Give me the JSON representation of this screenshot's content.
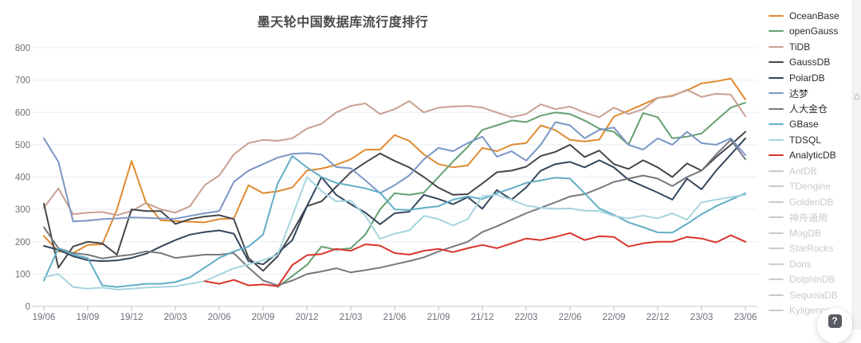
{
  "page": {
    "help_button_glyph": "?",
    "home_icon_glyph": "⌂"
  },
  "chart": {
    "title": "墨天轮中国数据库流行度排行",
    "y_axis": {
      "min": 0,
      "max": 800,
      "tick_labels": [
        "0",
        "100",
        "200",
        "300",
        "400",
        "500",
        "600",
        "700",
        "800"
      ]
    },
    "x_axis": {
      "tick_labels": [
        "19/06",
        "19/09",
        "19/12",
        "20/03",
        "20/06",
        "20/09",
        "20/12",
        "21/03",
        "21/06",
        "21/09",
        "21/12",
        "22/03",
        "22/06",
        "22/09",
        "22/12",
        "23/03",
        "23/06"
      ]
    }
  },
  "chart_data": {
    "type": "line",
    "title": "墨天轮中国数据库流行度排行",
    "x_interval": "monthly",
    "x_first": "2019/06",
    "x_last": "2023/06",
    "x_tick_labels": [
      "19/06",
      "19/09",
      "19/12",
      "20/03",
      "20/06",
      "20/09",
      "20/12",
      "21/03",
      "21/06",
      "21/09",
      "21/12",
      "22/03",
      "22/06",
      "22/09",
      "22/12",
      "23/03",
      "23/06"
    ],
    "ylim": [
      0,
      800
    ],
    "grid": true,
    "legend_position": "right",
    "disabled_color": "#c9cace",
    "series": [
      {
        "id": "oceanbase",
        "name": "OceanBase",
        "color": "#df8a30",
        "values": [
          218,
          170,
          165,
          190,
          192,
          300,
          450,
          320,
          266,
          264,
          262,
          260,
          270,
          272,
          375,
          350,
          356,
          368,
          420,
          426,
          438,
          455,
          485,
          485,
          530,
          512,
          470,
          440,
          430,
          436,
          490,
          480,
          500,
          505,
          560,
          545,
          515,
          510,
          516,
          587,
          605,
          625,
          645,
          652,
          668,
          690,
          696,
          705,
          640
        ]
      },
      {
        "id": "opengauss",
        "name": "openGauss",
        "color": "#63a06f",
        "values": [
          null,
          null,
          null,
          null,
          null,
          null,
          null,
          null,
          null,
          null,
          null,
          null,
          null,
          null,
          null,
          null,
          60,
          94,
          128,
          185,
          175,
          180,
          222,
          300,
          350,
          345,
          352,
          400,
          448,
          493,
          546,
          560,
          575,
          570,
          590,
          600,
          595,
          575,
          550,
          540,
          500,
          598,
          585,
          520,
          525,
          535,
          575,
          615,
          630
        ]
      },
      {
        "id": "tidb",
        "name": "TiDB",
        "color": "#c8a092",
        "values": [
          305,
          365,
          285,
          290,
          292,
          282,
          295,
          320,
          300,
          290,
          310,
          375,
          405,
          470,
          505,
          515,
          512,
          520,
          550,
          565,
          600,
          620,
          628,
          595,
          610,
          635,
          600,
          615,
          618,
          620,
          615,
          600,
          585,
          595,
          625,
          610,
          618,
          600,
          585,
          615,
          595,
          610,
          645,
          650,
          670,
          648,
          658,
          655,
          588
        ]
      },
      {
        "id": "gaussdb",
        "name": "GaussDB",
        "color": "#45464b",
        "values": [
          318,
          120,
          185,
          200,
          195,
          160,
          300,
          295,
          295,
          255,
          270,
          278,
          282,
          270,
          150,
          110,
          155,
          230,
          310,
          325,
          370,
          415,
          445,
          473,
          450,
          430,
          400,
          367,
          345,
          347,
          380,
          415,
          420,
          432,
          465,
          478,
          500,
          462,
          482,
          440,
          425,
          452,
          430,
          400,
          442,
          420,
          462,
          500,
          540
        ]
      },
      {
        "id": "polardb",
        "name": "PolarDB",
        "color": "#33475c",
        "values": [
          187,
          175,
          155,
          143,
          140,
          142,
          150,
          163,
          185,
          205,
          222,
          230,
          235,
          225,
          140,
          130,
          165,
          205,
          310,
          400,
          345,
          316,
          290,
          254,
          288,
          293,
          345,
          332,
          316,
          338,
          302,
          360,
          330,
          368,
          420,
          440,
          447,
          430,
          452,
          430,
          392,
          372,
          352,
          330,
          395,
          362,
          420,
          470,
          520
        ]
      },
      {
        "id": "dameng",
        "name": "达梦",
        "color": "#7b96c6",
        "values": [
          520,
          447,
          263,
          265,
          270,
          272,
          275,
          274,
          272,
          271,
          280,
          288,
          295,
          385,
          420,
          440,
          460,
          472,
          474,
          470,
          431,
          427,
          390,
          350,
          375,
          405,
          455,
          490,
          480,
          505,
          525,
          463,
          480,
          451,
          500,
          570,
          560,
          520,
          546,
          553,
          500,
          485,
          520,
          500,
          540,
          505,
          500,
          520,
          468
        ]
      },
      {
        "id": "renda-jincang",
        "name": "人大金仓",
        "color": "#77787e",
        "values": [
          245,
          180,
          165,
          160,
          148,
          155,
          160,
          170,
          165,
          150,
          155,
          160,
          160,
          165,
          120,
          80,
          65,
          80,
          100,
          108,
          118,
          105,
          112,
          120,
          130,
          140,
          152,
          170,
          185,
          200,
          230,
          248,
          268,
          288,
          305,
          322,
          340,
          347,
          365,
          385,
          395,
          405,
          395,
          372,
          400,
          420,
          470,
          515,
          455
        ]
      },
      {
        "id": "gbase",
        "name": "GBase",
        "color": "#62aec6",
        "values": [
          80,
          180,
          160,
          150,
          65,
          60,
          65,
          70,
          70,
          75,
          90,
          120,
          150,
          170,
          185,
          222,
          380,
          465,
          430,
          400,
          382,
          374,
          365,
          352,
          300,
          298,
          305,
          310,
          330,
          340,
          332,
          350,
          365,
          382,
          390,
          398,
          395,
          350,
          303,
          283,
          260,
          245,
          229,
          228,
          255,
          285,
          310,
          330,
          350
        ]
      },
      {
        "id": "tdsql",
        "name": "TDSQL",
        "color": "#a6d5de",
        "values": [
          90,
          100,
          60,
          55,
          58,
          52,
          55,
          58,
          60,
          62,
          70,
          78,
          98,
          118,
          130,
          143,
          160,
          280,
          400,
          357,
          325,
          327,
          280,
          209,
          225,
          235,
          280,
          270,
          250,
          270,
          341,
          345,
          330,
          312,
          305,
          302,
          303,
          296,
          295,
          280,
          272,
          281,
          272,
          288,
          268,
          322,
          330,
          338,
          345
        ]
      },
      {
        "id": "analyticdb",
        "name": "AnalyticDB",
        "color": "#d8342c",
        "values": [
          null,
          null,
          null,
          null,
          null,
          null,
          null,
          null,
          null,
          null,
          null,
          78,
          70,
          82,
          65,
          68,
          62,
          128,
          158,
          162,
          178,
          172,
          192,
          188,
          165,
          160,
          172,
          178,
          168,
          180,
          190,
          180,
          195,
          210,
          205,
          215,
          227,
          205,
          217,
          215,
          185,
          195,
          200,
          200,
          215,
          210,
          198,
          220,
          200
        ]
      }
    ],
    "legend_disabled": [
      {
        "id": "antdb",
        "label": "AntDB"
      },
      {
        "id": "tdengine",
        "label": "TDengine"
      },
      {
        "id": "goldendb",
        "label": "GoldenDB"
      },
      {
        "id": "shenzhou-tongyong",
        "label": "神舟通用"
      },
      {
        "id": "mogdb",
        "label": "MogDB"
      },
      {
        "id": "starrocks",
        "label": "StarRocks"
      },
      {
        "id": "doris",
        "label": "Doris"
      },
      {
        "id": "dolphindb",
        "label": "DolphinDB"
      },
      {
        "id": "sequoiadb",
        "label": "SequoiaDB"
      },
      {
        "id": "kyligence",
        "label": "Kyligence"
      }
    ]
  }
}
